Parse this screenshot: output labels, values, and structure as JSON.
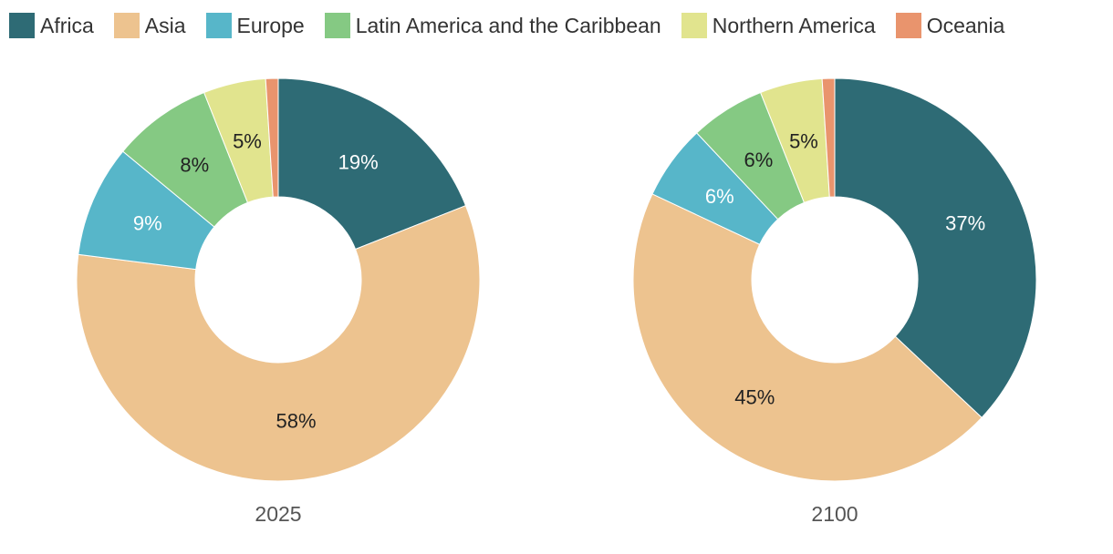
{
  "chart_data": {
    "type": "pie",
    "subtype": "donut",
    "legend_placement": "top-left",
    "categories": [
      "Africa",
      "Asia",
      "Europe",
      "Latin America and the Caribbean",
      "Northern America",
      "Oceania"
    ],
    "colors": [
      "#2e6b75",
      "#edc38f",
      "#57b6c9",
      "#85c983",
      "#e1e48e",
      "#e9946d"
    ],
    "label_colors": [
      "#ffffff",
      "#222222",
      "#ffffff",
      "#222222",
      "#222222",
      "#222222"
    ],
    "charts": [
      {
        "title": "2025",
        "values": [
          19,
          58,
          9,
          8,
          5,
          1
        ],
        "labels": [
          "19%",
          "58%",
          "9%",
          "8%",
          "5%",
          ""
        ]
      },
      {
        "title": "2100",
        "values": [
          37,
          45,
          6,
          6,
          5,
          1
        ],
        "labels": [
          "37%",
          "45%",
          "6%",
          "6%",
          "5%",
          ""
        ]
      }
    ]
  }
}
